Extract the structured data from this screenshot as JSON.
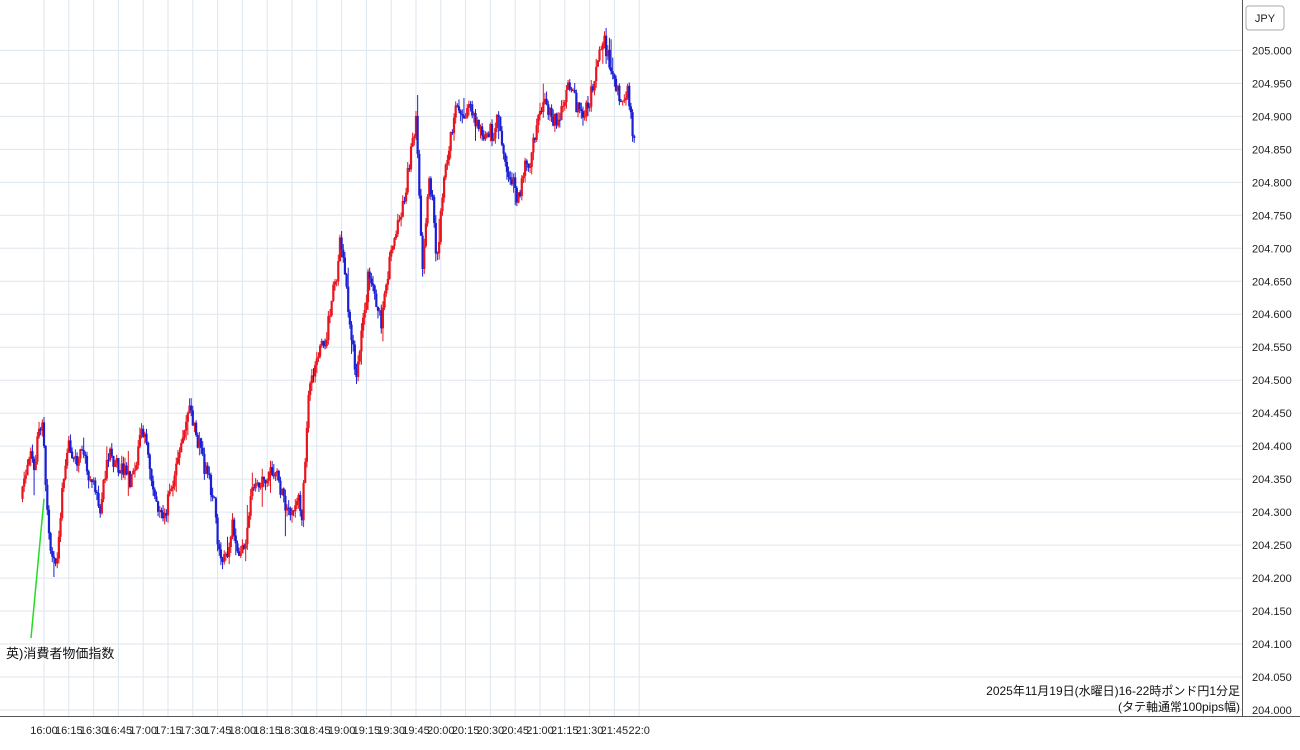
{
  "chart_data": {
    "type": "candlestick",
    "title": "2025年11月19日(水曜日)16-22時ポンド円1分足",
    "subtitle": "(タテ軸通常100pips幅)",
    "unit_label": "JPY",
    "ylim": [
      204.0,
      205.1
    ],
    "y_ticks": [
      "204.000",
      "204.050",
      "204.100",
      "204.150",
      "204.200",
      "204.250",
      "204.300",
      "204.350",
      "204.400",
      "204.450",
      "204.500",
      "204.550",
      "204.600",
      "204.650",
      "204.700",
      "204.750",
      "204.800",
      "204.850",
      "204.900",
      "204.950",
      "205.000"
    ],
    "x_ticks": [
      "16:00",
      "16:15",
      "16:30",
      "16:45",
      "17:00",
      "17:15",
      "17:30",
      "17:45",
      "18:00",
      "18:15",
      "18:30",
      "18:45",
      "19:00",
      "19:15",
      "19:30",
      "19:45",
      "20:00",
      "20:15",
      "20:30",
      "20:45",
      "21:00",
      "21:15",
      "21:30",
      "21:45",
      "22:0"
    ],
    "grid": true,
    "up_color": "#e8141e",
    "down_color": "#1a1fd6",
    "annotation": {
      "text": "英)消費者物価指数",
      "time": "16:00",
      "color": "#22dd22"
    },
    "path": [
      [
        "15:47",
        204.32
      ],
      [
        "15:52",
        204.39
      ],
      [
        "15:55",
        204.37
      ],
      [
        "15:58",
        204.42
      ],
      [
        "16:00",
        204.43
      ],
      [
        "16:02",
        204.35
      ],
      [
        "16:05",
        204.24
      ],
      [
        "16:08",
        204.22
      ],
      [
        "16:10",
        204.26
      ],
      [
        "16:13",
        204.36
      ],
      [
        "16:16",
        204.4
      ],
      [
        "16:20",
        204.38
      ],
      [
        "16:25",
        204.39
      ],
      [
        "16:28",
        204.36
      ],
      [
        "16:32",
        204.33
      ],
      [
        "16:35",
        204.31
      ],
      [
        "16:38",
        204.36
      ],
      [
        "16:41",
        204.39
      ],
      [
        "16:45",
        204.37
      ],
      [
        "16:50",
        204.36
      ],
      [
        "16:53",
        204.35
      ],
      [
        "16:56",
        204.37
      ],
      [
        "17:00",
        204.42
      ],
      [
        "17:03",
        204.4
      ],
      [
        "17:05",
        204.36
      ],
      [
        "17:08",
        204.33
      ],
      [
        "17:11",
        204.3
      ],
      [
        "17:14",
        204.29
      ],
      [
        "17:17",
        204.33
      ],
      [
        "17:20",
        204.36
      ],
      [
        "17:23",
        204.39
      ],
      [
        "17:26",
        204.42
      ],
      [
        "17:29",
        204.45
      ],
      [
        "17:32",
        204.43
      ],
      [
        "17:35",
        204.4
      ],
      [
        "17:38",
        204.37
      ],
      [
        "17:41",
        204.35
      ],
      [
        "17:44",
        204.31
      ],
      [
        "17:47",
        204.24
      ],
      [
        "17:50",
        204.23
      ],
      [
        "17:53",
        204.25
      ],
      [
        "17:55",
        204.28
      ],
      [
        "17:58",
        204.25
      ],
      [
        "18:00",
        204.24
      ],
      [
        "18:03",
        204.26
      ],
      [
        "18:06",
        204.32
      ],
      [
        "18:09",
        204.35
      ],
      [
        "18:12",
        204.34
      ],
      [
        "18:15",
        204.35
      ],
      [
        "18:18",
        204.37
      ],
      [
        "18:21",
        204.36
      ],
      [
        "18:24",
        204.33
      ],
      [
        "18:27",
        204.31
      ],
      [
        "18:30",
        204.3
      ],
      [
        "18:33",
        204.31
      ],
      [
        "18:35",
        204.33
      ],
      [
        "18:37",
        204.29
      ],
      [
        "18:39",
        204.38
      ],
      [
        "18:41",
        204.47
      ],
      [
        "18:43",
        204.51
      ],
      [
        "18:46",
        204.53
      ],
      [
        "18:49",
        204.55
      ],
      [
        "18:52",
        204.57
      ],
      [
        "18:55",
        204.62
      ],
      [
        "18:58",
        204.66
      ],
      [
        "19:00",
        204.71
      ],
      [
        "19:02",
        204.69
      ],
      [
        "19:04",
        204.63
      ],
      [
        "19:07",
        204.56
      ],
      [
        "19:10",
        204.51
      ],
      [
        "19:12",
        204.55
      ],
      [
        "19:15",
        204.6
      ],
      [
        "19:17",
        204.66
      ],
      [
        "19:20",
        204.64
      ],
      [
        "19:22",
        204.61
      ],
      [
        "19:25",
        204.59
      ],
      [
        "19:27",
        204.63
      ],
      [
        "19:30",
        204.68
      ],
      [
        "19:33",
        204.71
      ],
      [
        "19:36",
        204.74
      ],
      [
        "19:39",
        204.77
      ],
      [
        "19:42",
        204.83
      ],
      [
        "19:44",
        204.86
      ],
      [
        "19:46",
        204.89
      ],
      [
        "19:48",
        204.78
      ],
      [
        "19:50",
        204.67
      ],
      [
        "19:52",
        204.75
      ],
      [
        "19:54",
        204.8
      ],
      [
        "19:56",
        204.78
      ],
      [
        "19:58",
        204.69
      ],
      [
        "20:00",
        204.72
      ],
      [
        "20:03",
        204.8
      ],
      [
        "20:06",
        204.86
      ],
      [
        "20:09",
        204.9
      ],
      [
        "20:12",
        204.92
      ],
      [
        "20:15",
        204.9
      ],
      [
        "20:18",
        204.91
      ],
      [
        "20:21",
        204.9
      ],
      [
        "20:24",
        204.88
      ],
      [
        "20:27",
        204.87
      ],
      [
        "20:30",
        204.88
      ],
      [
        "20:33",
        204.87
      ],
      [
        "20:36",
        204.9
      ],
      [
        "20:39",
        204.84
      ],
      [
        "20:42",
        204.82
      ],
      [
        "20:45",
        204.8
      ],
      [
        "20:47",
        204.77
      ],
      [
        "20:50",
        204.8
      ],
      [
        "20:52",
        204.84
      ],
      [
        "20:55",
        204.82
      ],
      [
        "20:57",
        204.86
      ],
      [
        "21:00",
        204.89
      ],
      [
        "21:03",
        204.92
      ],
      [
        "21:06",
        204.91
      ],
      [
        "21:09",
        204.89
      ],
      [
        "21:12",
        204.9
      ],
      [
        "21:15",
        204.92
      ],
      [
        "21:18",
        204.95
      ],
      [
        "21:21",
        204.93
      ],
      [
        "21:24",
        204.91
      ],
      [
        "21:27",
        204.9
      ],
      [
        "21:30",
        204.92
      ],
      [
        "21:33",
        204.94
      ],
      [
        "21:36",
        204.98
      ],
      [
        "21:38",
        205.0
      ],
      [
        "21:40",
        205.01
      ],
      [
        "21:43",
        204.98
      ],
      [
        "21:46",
        204.95
      ],
      [
        "21:49",
        204.93
      ],
      [
        "21:52",
        204.92
      ],
      [
        "21:54",
        204.95
      ],
      [
        "21:56",
        204.9
      ],
      [
        "21:57",
        204.87
      ]
    ]
  }
}
